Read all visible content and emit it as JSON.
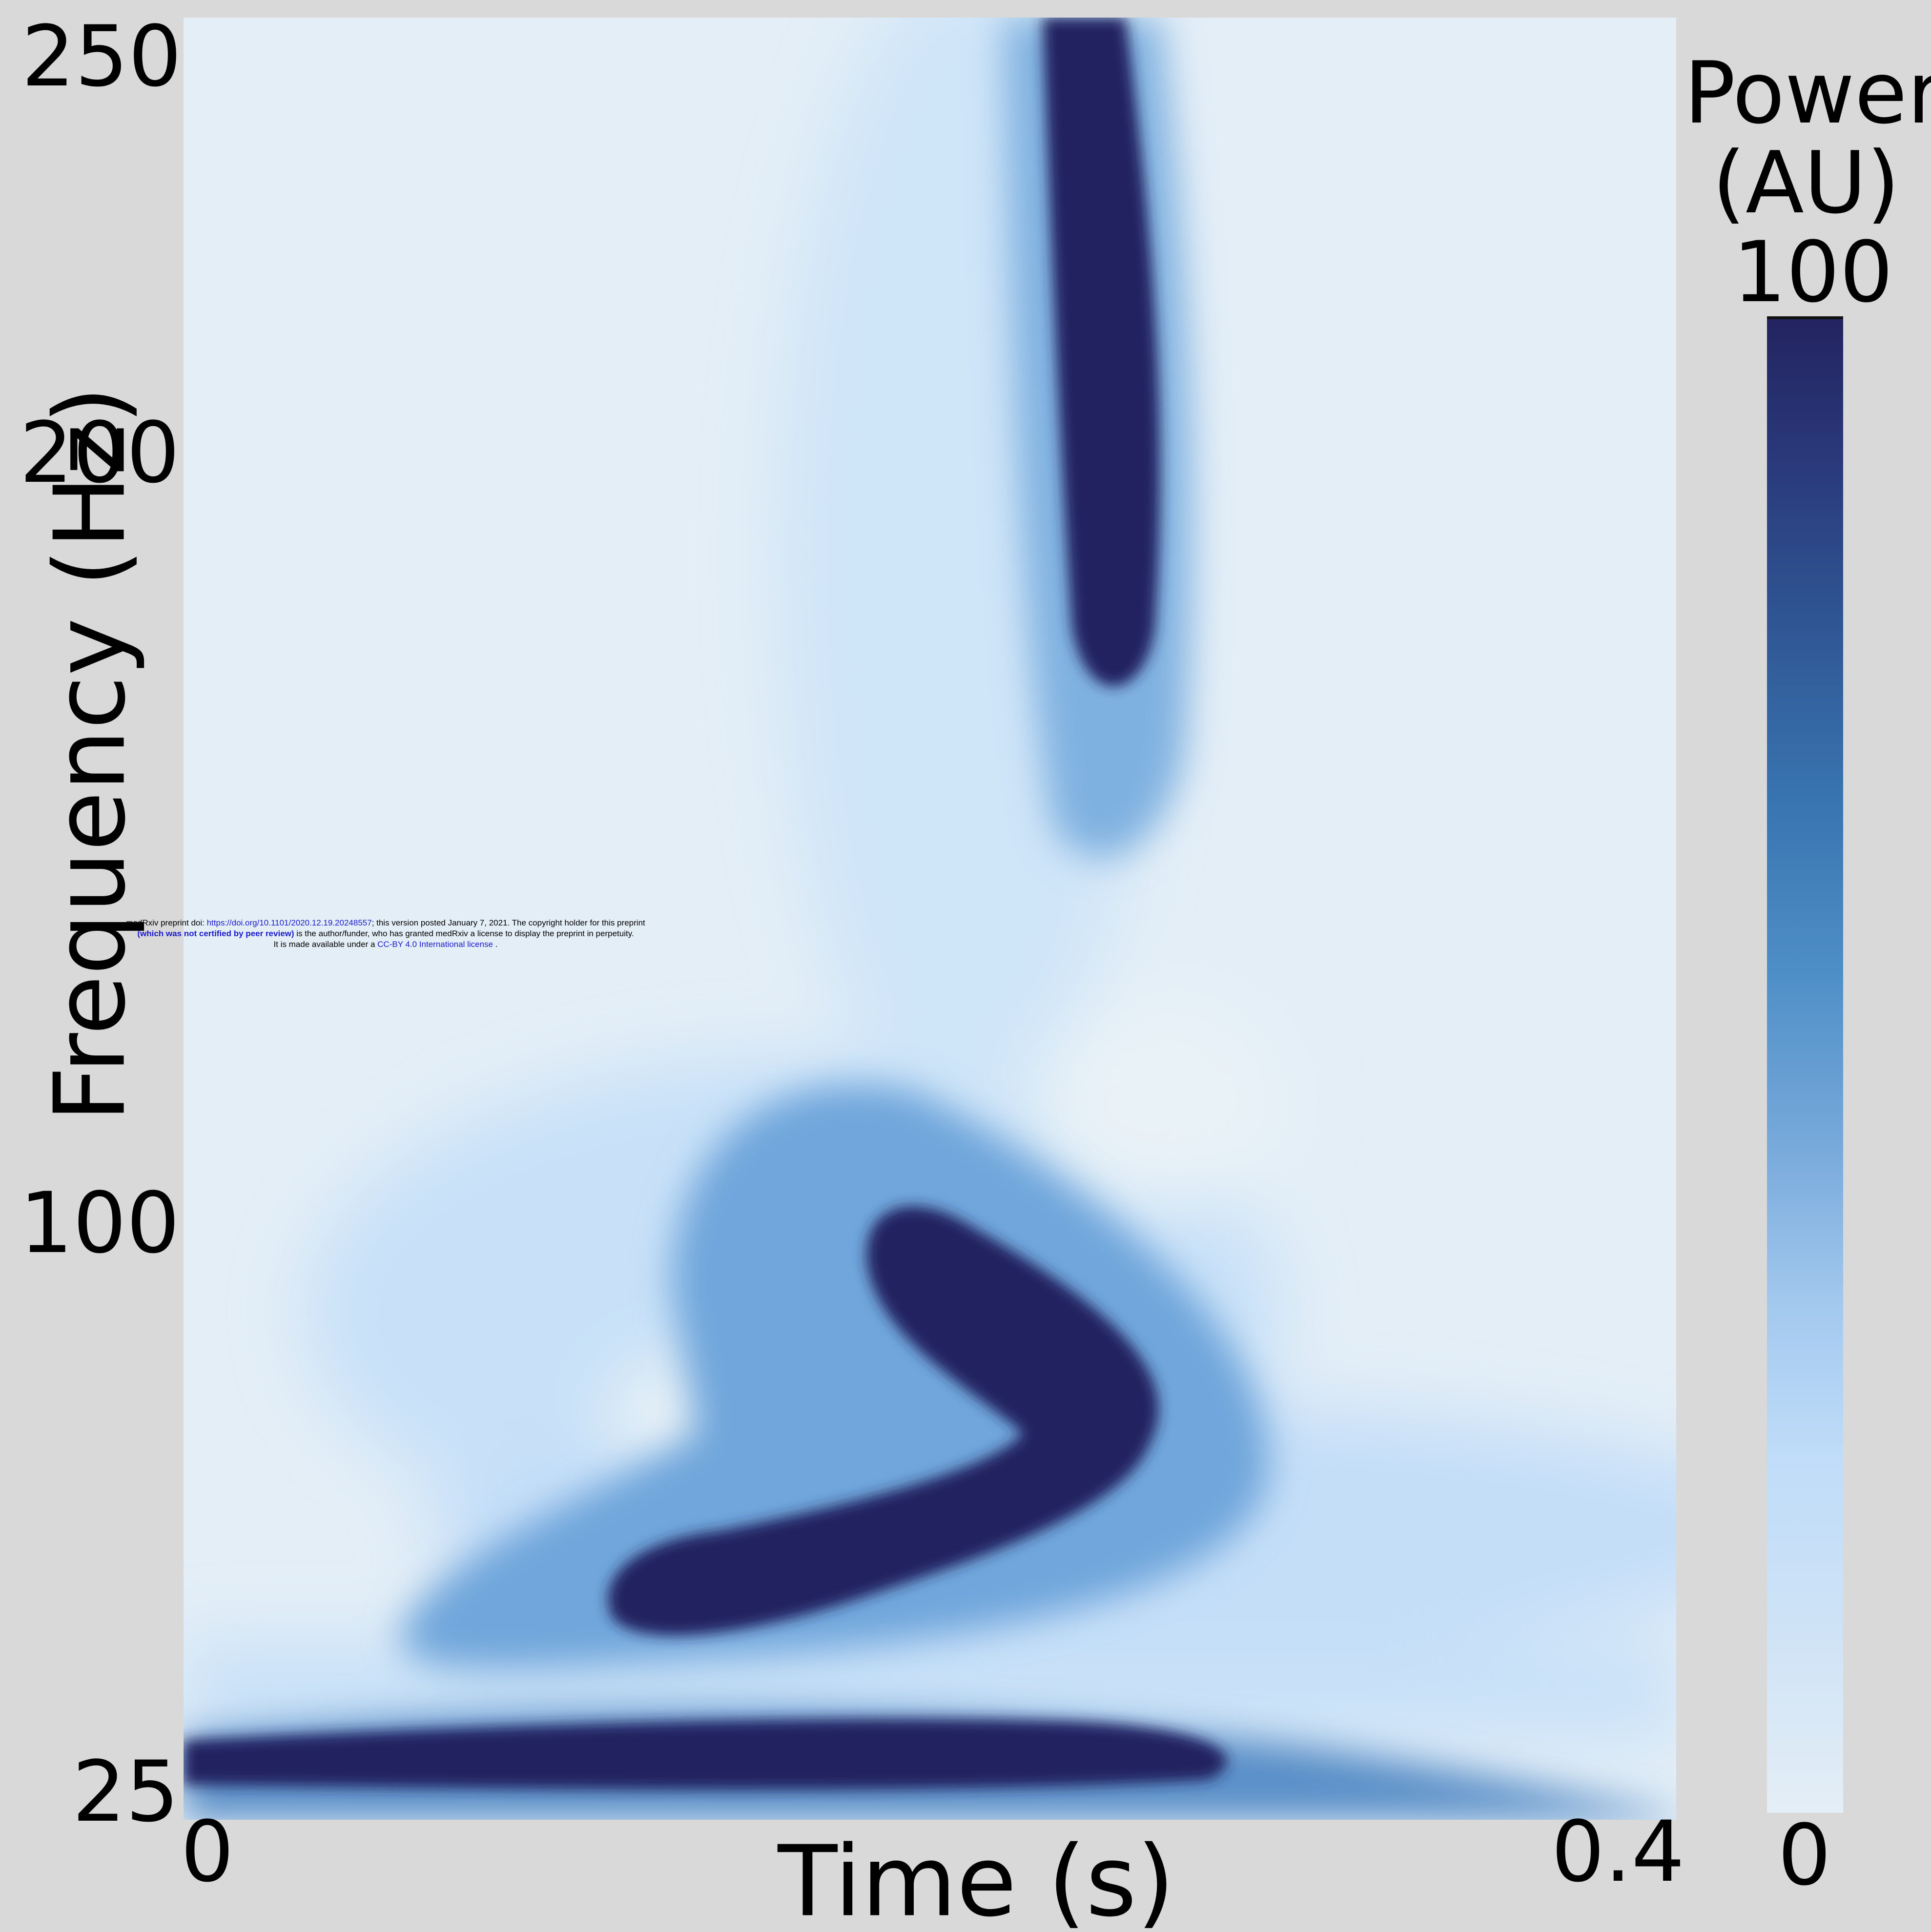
{
  "chart_data": {
    "type": "heatmap",
    "xlabel": "Time (s)",
    "ylabel": "Frequency (Hz)",
    "xlim": [
      0,
      0.4
    ],
    "ylim": [
      25,
      250
    ],
    "x_ticks": [
      "0",
      "0.4"
    ],
    "y_ticks": [
      "25",
      "100",
      "200",
      "250"
    ],
    "colorbar": {
      "title_line1": "Power",
      "title_line2": "(AU)",
      "max_label": "100",
      "min_label": "0",
      "range": [
        0,
        100
      ],
      "colors": [
        "#e4eef6",
        "#bfdcf9",
        "#7aabdc",
        "#3874b0",
        "#2f5592",
        "#232460"
      ]
    },
    "high_power_regions": [
      {
        "t_start": 0.0,
        "t_end": 0.3,
        "f_low": 25,
        "f_high": 28,
        "power": 100
      },
      {
        "t_start": 0.12,
        "t_end": 0.26,
        "f_low": 45,
        "f_high": 95,
        "power": 100
      },
      {
        "t_start": 0.2,
        "t_end": 0.26,
        "f_low": 180,
        "f_high": 250,
        "power": 100
      }
    ]
  },
  "watermark": {
    "line1_pre": "medRxiv preprint doi: ",
    "line1_link": "https://doi.org/10.1101/2020.12.19.20248557",
    "line1_post": "; this version posted January 7, 2021. The copyright holder for this preprint",
    "line2_bold": "(which was not certified by peer review)",
    "line2_post": " is the author/funder, who has granted medRxiv a license to display the preprint in perpetuity.",
    "line3_pre": "It is made available under a ",
    "line3_link": "CC-BY 4.0 International license",
    "line3_post": " ."
  }
}
